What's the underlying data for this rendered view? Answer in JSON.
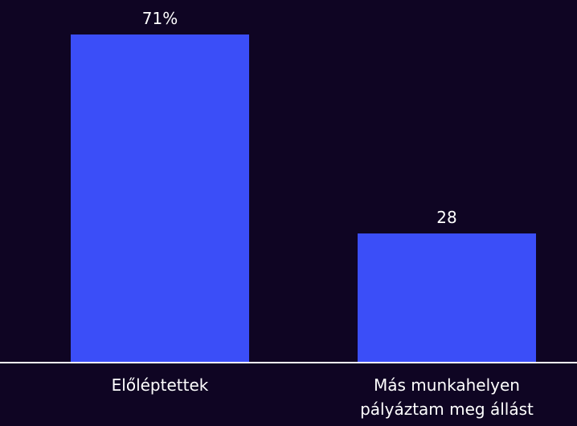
{
  "chart_data": {
    "type": "bar",
    "categories": [
      "Előléptettek",
      "Más munkahelyen pályáztam meg állást"
    ],
    "values": [
      71,
      28
    ],
    "value_labels": [
      "71%",
      "28"
    ],
    "color": "#3b4ef8"
  }
}
